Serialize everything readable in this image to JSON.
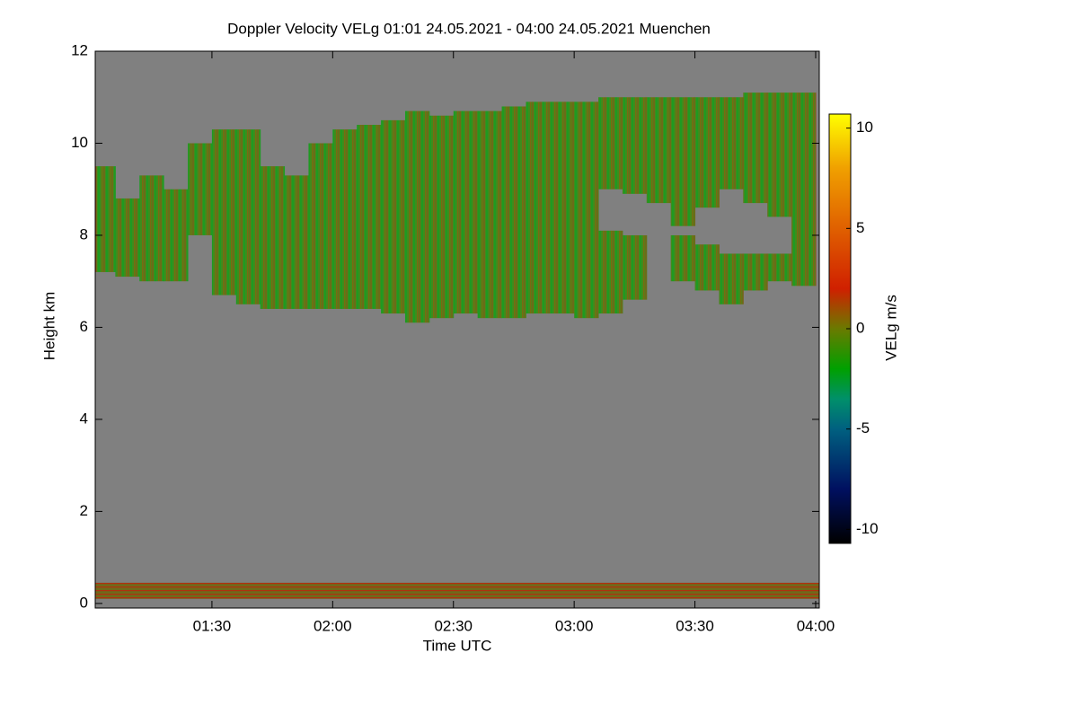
{
  "chart_data": {
    "type": "heatmap",
    "title": "Doppler Velocity VELg   01:01 24.05.2021 - 04:00 24.05.2021 Muenchen",
    "xlabel": "Time UTC",
    "ylabel": "Height km",
    "colorbar_label": "VELg m/s",
    "xlim": [
      1.0167,
      4.015
    ],
    "ylim": [
      -0.1,
      12
    ],
    "xticks": [
      {
        "value": 1.5,
        "label": "01:30"
      },
      {
        "value": 2,
        "label": "02:00"
      },
      {
        "value": 2.5,
        "label": "02:30"
      },
      {
        "value": 3,
        "label": "03:00"
      },
      {
        "value": 3.5,
        "label": "03:30"
      },
      {
        "value": 4,
        "label": "04:00"
      }
    ],
    "yticks": [
      0,
      2,
      4,
      6,
      8,
      10,
      12
    ],
    "zlim": [
      -10.7,
      10.7
    ],
    "zticks": [
      10,
      5,
      0,
      -5,
      -10
    ],
    "colormap": [
      {
        "value": -10.7,
        "color": "#000000"
      },
      {
        "value": -8,
        "color": "#001060"
      },
      {
        "value": -5,
        "color": "#006080"
      },
      {
        "value": -3.5,
        "color": "#00906a"
      },
      {
        "value": -2,
        "color": "#00a000"
      },
      {
        "value": 0,
        "color": "#6a7a00"
      },
      {
        "value": 2,
        "color": "#d02000"
      },
      {
        "value": 5,
        "color": "#e06000"
      },
      {
        "value": 8,
        "color": "#f0a000"
      },
      {
        "value": 10.7,
        "color": "#ffff00"
      }
    ],
    "background": "#808080",
    "cloud": [
      {
        "x": [
          1.05,
          1.15,
          1.25,
          1.35,
          1.45,
          1.55,
          1.65,
          1.75,
          1.85,
          1.95,
          2.05,
          2.15,
          2.25,
          2.35,
          2.45,
          2.55,
          2.65,
          2.75,
          2.85,
          2.95,
          3.05,
          3.15,
          3.25,
          3.35,
          3.45,
          3.55,
          3.65,
          3.75,
          3.85,
          3.95
        ],
        "top": [
          9.5,
          8.8,
          9.3,
          9.0,
          10.0,
          10.3,
          10.3,
          9.5,
          9.3,
          10.0,
          10.3,
          10.4,
          10.5,
          10.7,
          10.6,
          10.7,
          10.7,
          10.8,
          10.9,
          10.9,
          10.9,
          11.0,
          11.0,
          11.0,
          11.0,
          11.0,
          11.0,
          11.1,
          11.1,
          11.1
        ],
        "base": [
          7.2,
          7.1,
          7.0,
          7.0,
          8.0,
          6.7,
          6.5,
          6.4,
          6.4,
          6.4,
          6.4,
          6.4,
          6.3,
          6.1,
          6.2,
          6.3,
          6.2,
          6.2,
          6.3,
          6.3,
          6.2,
          9.0,
          8.9,
          8.7,
          8.2,
          8.6,
          9.0,
          8.7,
          8.4,
          6.9
        ]
      },
      {
        "x": [
          3.15,
          3.25,
          3.35,
          3.45,
          3.55,
          3.65,
          3.75,
          3.85
        ],
        "top": [
          8.1,
          8.0,
          null,
          8.0,
          7.8,
          7.6,
          7.6,
          7.6
        ],
        "base": [
          6.3,
          6.6,
          null,
          7.0,
          6.8,
          6.5,
          6.8,
          7.0
        ]
      }
    ],
    "boundary_layer": {
      "base": 0.1,
      "top": 0.45
    }
  }
}
